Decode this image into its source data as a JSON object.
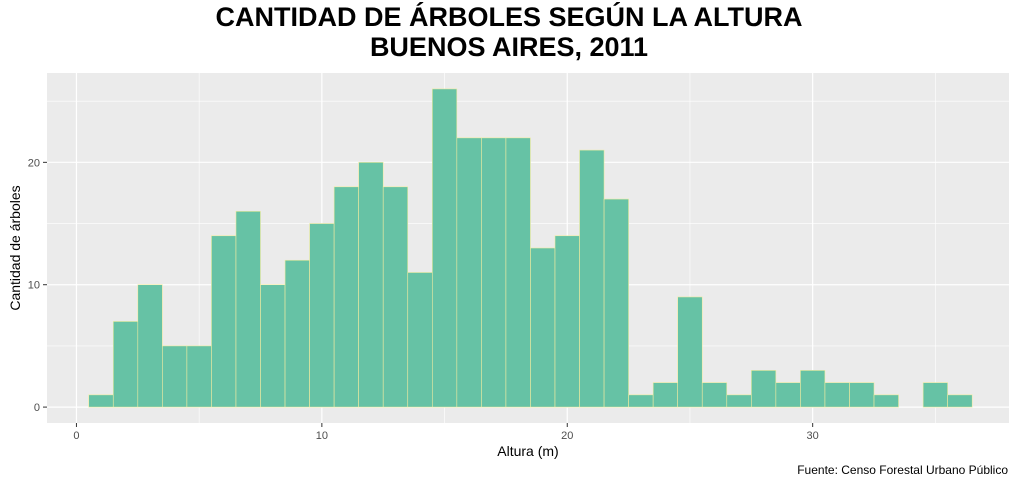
{
  "chart_data": {
    "type": "bar",
    "title_line1": "CANTIDAD DE ÁRBOLES SEGÚN LA ALTURA",
    "title_line2": "BUENOS AIRES, 2011",
    "xlabel": "Altura (m)",
    "ylabel": "Cantidad de árboles",
    "caption": "Fuente: Censo Forestal Urbano Público",
    "bin_width": 1,
    "bin_start": 0.5,
    "values": [
      1,
      7,
      10,
      5,
      5,
      14,
      16,
      10,
      12,
      15,
      18,
      20,
      18,
      11,
      26,
      22,
      22,
      22,
      13,
      14,
      21,
      17,
      1,
      2,
      9,
      2,
      1,
      3,
      2,
      3,
      2,
      2,
      1,
      0,
      2,
      1
    ],
    "xlim": [
      -1.2,
      38.0
    ],
    "ylim": [
      -1.3,
      27.3
    ],
    "x_ticks": [
      0,
      10,
      20,
      30
    ],
    "y_ticks": [
      0,
      10,
      20
    ],
    "grid": true,
    "colors": {
      "bar_fill": "#66c2a5",
      "bar_stroke": "#f2eca0",
      "panel_bg": "#ebebeb",
      "grid_major": "#ffffff"
    }
  }
}
